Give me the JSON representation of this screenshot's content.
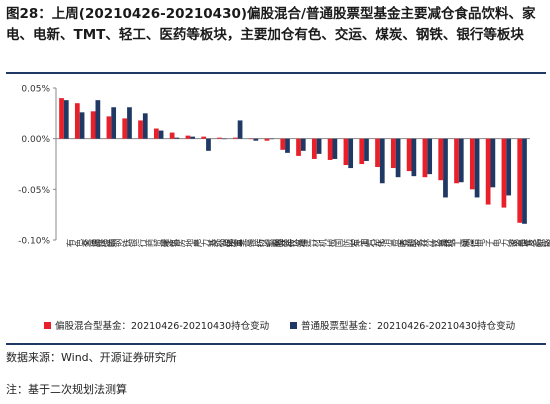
{
  "figure": {
    "title": "图28：上周(20210426-20210430)偏股混合/普通股票型基金主要减仓食品饮料、家电、电新、TMT、轻工、医药等板块，主要加仓有色、交运、煤炭、钢铁、银行等板块",
    "source": "数据来源：Wind、开源证券研究所",
    "note": "注：基于二次规划法测算"
  },
  "chart_data": {
    "type": "bar",
    "ylim": [
      -0.1,
      0.05
    ],
    "yticks": [
      -0.1,
      -0.05,
      0,
      0.05
    ],
    "ytick_labels": [
      "-0.10%",
      "-0.05%",
      "0.00%",
      "0.05%"
    ],
    "categories": [
      "有色金属",
      "交通运输",
      "煤炭",
      "钢铁",
      "银行",
      "商贸零售",
      "建筑",
      "房地产",
      "电力及公用事业",
      "基础化工",
      "综合",
      "非银行金融",
      "纺织服装",
      "农林牧渔",
      "传媒",
      "建材",
      "机械",
      "国防军工",
      "石油石化",
      "汽车",
      "消费者服务",
      "医药",
      "农林牧渔",
      "计算机",
      "轻工制造",
      "通信",
      "电子",
      "电力设备及新能源",
      "家电",
      "食品饮料"
    ],
    "series": [
      {
        "name": "偏股混合型基金：20210426-20210430持仓变动",
        "color": "#e8202a",
        "values": [
          0.04,
          0.035,
          0.027,
          0.022,
          0.02,
          0.018,
          0.01,
          0.006,
          0.003,
          0.002,
          0.001,
          0.001,
          0.0,
          -0.002,
          -0.011,
          -0.017,
          -0.02,
          -0.021,
          -0.026,
          -0.025,
          -0.028,
          -0.029,
          -0.032,
          -0.038,
          -0.041,
          -0.044,
          -0.05,
          -0.065,
          -0.068,
          -0.083
        ]
      },
      {
        "name": "普通股票型基金：20210426-20210430持仓变动",
        "color": "#1f3864",
        "values": [
          0.038,
          0.026,
          0.038,
          0.031,
          0.031,
          0.025,
          0.008,
          0.001,
          0.002,
          -0.012,
          0.0,
          0.018,
          -0.002,
          0.0,
          -0.014,
          -0.012,
          -0.015,
          -0.02,
          -0.029,
          -0.022,
          -0.044,
          -0.038,
          -0.037,
          -0.035,
          -0.058,
          -0.043,
          -0.058,
          -0.048,
          -0.056,
          -0.084
        ]
      }
    ]
  }
}
